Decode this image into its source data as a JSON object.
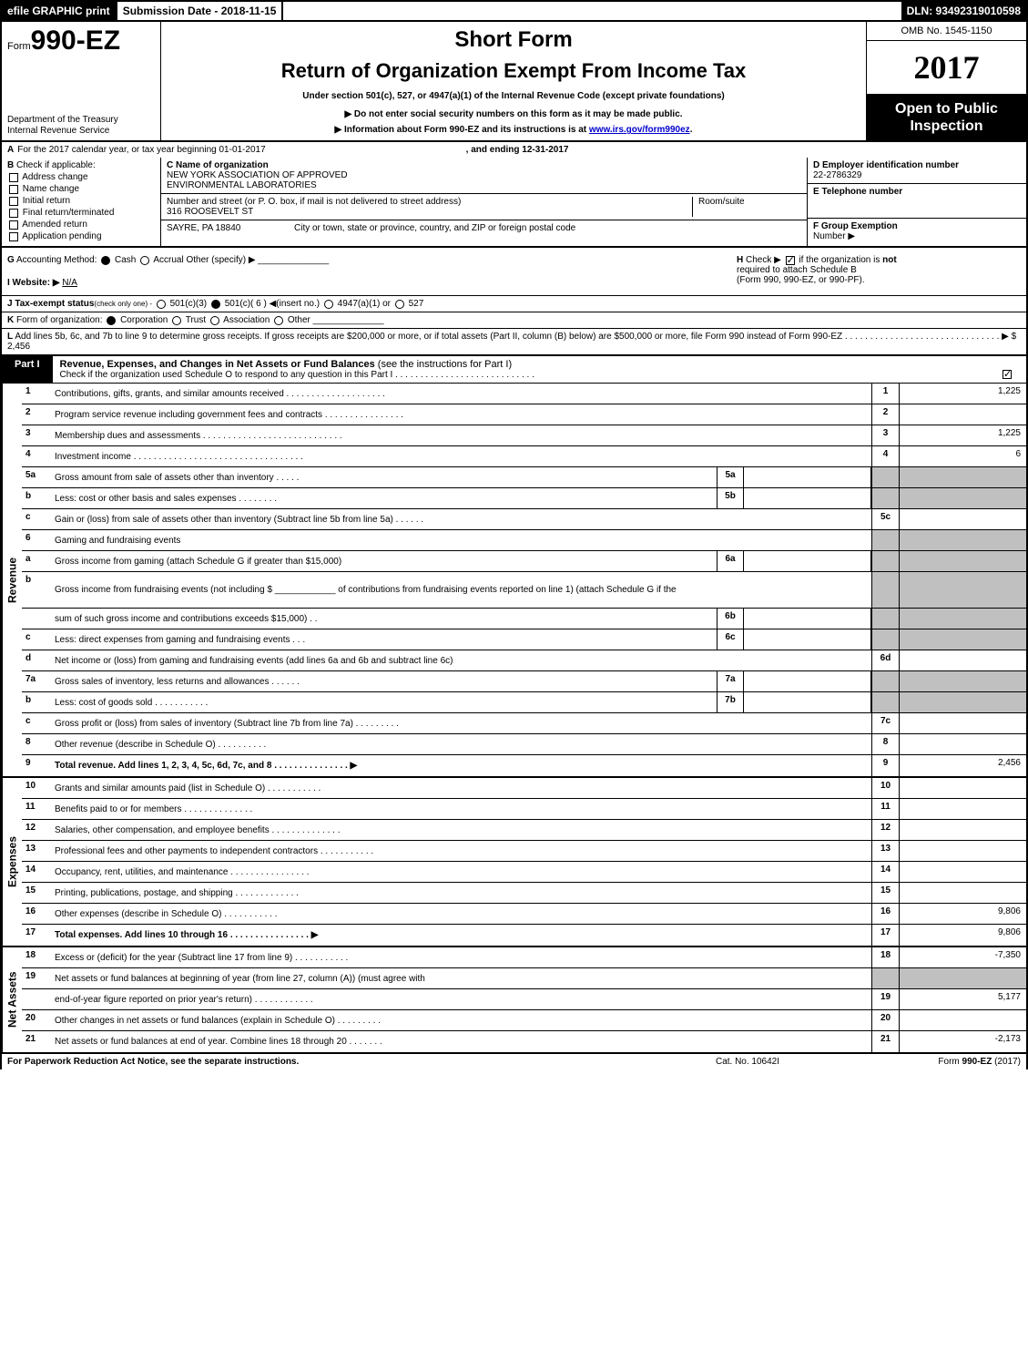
{
  "topbar": {
    "efile": "efile GRAPHIC print",
    "submission_date_label": "Submission Date - 2018-11-15",
    "dln": "DLN: 93492319010598"
  },
  "header": {
    "form_prefix": "Form",
    "form_number": "990-EZ",
    "dept_line1": "Department of the Treasury",
    "dept_line2": "Internal Revenue Service",
    "short_form": "Short Form",
    "title": "Return of Organization Exempt From Income Tax",
    "subtitle": "Under section 501(c), 527, or 4947(a)(1) of the Internal Revenue Code (except private foundations)",
    "arrow1": "▶ Do not enter social security numbers on this form as it may be made public.",
    "arrow2_prefix": "▶ Information about Form 990-EZ and its instructions is at ",
    "arrow2_link": "www.irs.gov/form990ez",
    "arrow2_suffix": ".",
    "omb": "OMB No. 1545-1150",
    "year": "2017",
    "open_public_l1": "Open to Public",
    "open_public_l2": "Inspection"
  },
  "section_a": {
    "line_a_prefix": "A",
    "line_a_text": "For the 2017 calendar year, or tax year beginning 01-01-2017",
    "line_a_mid": ", and ending 12-31-2017",
    "b_label": "B",
    "b_text": "Check if applicable:",
    "b_options": [
      "Address change",
      "Name change",
      "Initial return",
      "Final return/terminated",
      "Amended return",
      "Application pending"
    ],
    "c_label": "C Name of organization",
    "c_name_l1": "NEW YORK ASSOCIATION OF APPROVED",
    "c_name_l2": "ENVIRONMENTAL LABORATORIES",
    "c_street_label": "Number and street (or P. O. box, if mail is not delivered to street address)",
    "c_street": "316 ROOSEVELT ST",
    "c_room_label": "Room/suite",
    "c_city_label": "City or town, state or province, country, and ZIP or foreign postal code",
    "c_city": "SAYRE, PA  18840",
    "d_label": "D Employer identification number",
    "d_value": "22-2786329",
    "e_label": "E Telephone number",
    "f_label": "F Group Exemption",
    "f_label2": "Number",
    "f_arrow": "▶"
  },
  "line_g": {
    "g_label": "G",
    "g_text": "Accounting Method:",
    "g_cash": "Cash",
    "g_accrual": "Accrual",
    "g_other": "Other (specify) ▶",
    "h_label": "H",
    "h_text1": "Check ▶",
    "h_text2": "if the organization is ",
    "h_not": "not",
    "h_text3": "required to attach Schedule B",
    "h_text4": "(Form 990, 990-EZ, or 990-PF).",
    "i_label": "I Website: ▶",
    "i_value": "N/A",
    "j_label": "J Tax-exempt status",
    "j_note": "(check only one) -",
    "j_opts": [
      "501(c)(3)",
      "501(c)( 6 ) ◀(insert no.)",
      "4947(a)(1) or",
      "527"
    ],
    "k_label": "K",
    "k_text": "Form of organization:",
    "k_opts": [
      "Corporation",
      "Trust",
      "Association",
      "Other"
    ],
    "l_label": "L",
    "l_text": "Add lines 5b, 6c, and 7b to line 9 to determine gross receipts. If gross receipts are $200,000 or more, or if total assets (Part II, column (B) below) are $500,000 or more, file Form 990 instead of Form 990-EZ",
    "l_dots": " . . . . . . . . . . . . . . . . . . . . . . . . . . . . . . . ▶ $ 2,456"
  },
  "part1_header": {
    "tag": "Part I",
    "title": "Revenue, Expenses, and Changes in Net Assets or Fund Balances",
    "note": "(see the instructions for Part I)",
    "sub": "Check if the organization used Schedule O to respond to any question in this Part I . . . . . . . . . . . . . . . . . . . . . . . . . . . ."
  },
  "vlabels": {
    "revenue": "Revenue",
    "expenses": "Expenses",
    "netassets": "Net Assets"
  },
  "rows": [
    {
      "num": "1",
      "desc": "Contributions, gifts, grants, and similar amounts received . . . . . . . . . . . . . . . . . . . .",
      "rnum": "1",
      "rval": "1,225"
    },
    {
      "num": "2",
      "desc": "Program service revenue including government fees and contracts . . . . . . . . . . . . . . . .",
      "rnum": "2",
      "rval": ""
    },
    {
      "num": "3",
      "desc": "Membership dues and assessments . . . . . . . . . . . . . . . . . . . . . . . . . . . .",
      "rnum": "3",
      "rval": "1,225"
    },
    {
      "num": "4",
      "desc": "Investment income . . . . . . . . . . . . . . . . . . . . . . . . . . . . . . . . . .",
      "rnum": "4",
      "rval": "6"
    },
    {
      "num": "5a",
      "desc": "Gross amount from sale of assets other than inventory . . . . .",
      "mid_num": "5a",
      "mid_val": "",
      "shaded": true
    },
    {
      "num": "b",
      "desc": "Less: cost or other basis and sales expenses . . . . . . . .",
      "mid_num": "5b",
      "mid_val": "",
      "shaded": true
    },
    {
      "num": "c",
      "desc": "Gain or (loss) from sale of assets other than inventory (Subtract line 5b from line 5a)               .    .    .    .    .    .",
      "rnum": "5c",
      "rval": ""
    },
    {
      "num": "6",
      "desc": "Gaming and fundraising events",
      "shaded": true
    },
    {
      "num": "a",
      "desc": "Gross income from gaming (attach Schedule G if greater than $15,000)",
      "mid_num": "6a",
      "mid_val": "",
      "shaded": true
    },
    {
      "num": "b",
      "desc": "Gross income from fundraising events (not including $ ____________ of contributions from fundraising events reported on line 1) (attach Schedule G if the",
      "shaded": true,
      "tall": true
    },
    {
      "num": "",
      "desc": "sum of such gross income and contributions exceeds $15,000)         .    .",
      "mid_num": "6b",
      "mid_val": "",
      "shaded": true
    },
    {
      "num": "c",
      "desc": "Less: direct expenses from gaming and fundraising events              .    .    .",
      "mid_num": "6c",
      "mid_val": "",
      "shaded": true
    },
    {
      "num": "d",
      "desc": "Net income or (loss) from gaming and fundraising events (add lines 6a and 6b and subtract line 6c)",
      "rnum": "6d",
      "rval": ""
    },
    {
      "num": "7a",
      "desc": "Gross sales of inventory, less returns and allowances               .   .   .   .   .   .",
      "mid_num": "7a",
      "mid_val": "",
      "shaded": true
    },
    {
      "num": "b",
      "desc": "Less: cost of goods sold                              .   .   .   .   .   .   .   .   .   .   .",
      "mid_num": "7b",
      "mid_val": "",
      "shaded": true
    },
    {
      "num": "c",
      "desc": "Gross profit or (loss) from sales of inventory (Subtract line 7b from line 7a)         .   .   .   .   .   .   .   .   .",
      "rnum": "7c",
      "rval": ""
    },
    {
      "num": "8",
      "desc": "Other revenue (describe in Schedule O)                                                                     .   .   .   .   .   .   .   .   .   .",
      "rnum": "8",
      "rval": ""
    },
    {
      "num": "9",
      "desc": "Total revenue. Add lines 1, 2, 3, 4, 5c, 6d, 7c, and 8            .   .   .   .   .   .   .   .   .   .   .   .   .   .   .  ▶",
      "rnum": "9",
      "rval": "2,456",
      "bold": true
    }
  ],
  "expense_rows": [
    {
      "num": "10",
      "desc": "Grants and similar amounts paid (list in Schedule O)                       .   .   .   .   .   .   .   .   .   .   .",
      "rnum": "10",
      "rval": ""
    },
    {
      "num": "11",
      "desc": "Benefits paid to or for members                                         .   .   .   .   .   .   .   .   .   .   .   .   .   .",
      "rnum": "11",
      "rval": ""
    },
    {
      "num": "12",
      "desc": "Salaries, other compensation, and employee benefits              .   .   .   .   .   .   .   .   .   .   .   .   .   .",
      "rnum": "12",
      "rval": ""
    },
    {
      "num": "13",
      "desc": "Professional fees and other payments to independent contractors        .   .   .   .   .   .   .   .   .   .   .",
      "rnum": "13",
      "rval": ""
    },
    {
      "num": "14",
      "desc": "Occupancy, rent, utilities, and maintenance               .   .   .   .   .   .   .   .   .   .   .   .   .   .   .   .",
      "rnum": "14",
      "rval": ""
    },
    {
      "num": "15",
      "desc": "Printing, publications, postage, and shipping                            .   .   .   .   .   .   .   .   .   .   .   .   .",
      "rnum": "15",
      "rval": ""
    },
    {
      "num": "16",
      "desc": "Other expenses (describe in Schedule O)                                             .   .   .   .   .   .   .   .   .   .   .",
      "rnum": "16",
      "rval": "9,806"
    },
    {
      "num": "17",
      "desc": "Total expenses. Add lines 10 through 16                    .   .   .   .   .   .   .   .   .   .   .   .   .   .   .   .  ▶",
      "rnum": "17",
      "rval": "9,806",
      "bold": true
    }
  ],
  "netasset_rows": [
    {
      "num": "18",
      "desc": "Excess or (deficit) for the year (Subtract line 17 from line 9)                .   .   .   .   .   .   .   .   .   .   .",
      "rnum": "18",
      "rval": "-7,350"
    },
    {
      "num": "19",
      "desc": "Net assets or fund balances at beginning of year (from line 27, column (A)) (must agree with",
      "shaded": true
    },
    {
      "num": "",
      "desc": "end-of-year figure reported on prior year's return)                        .   .   .   .   .   .   .   .   .   .   .   .",
      "rnum": "19",
      "rval": "5,177"
    },
    {
      "num": "20",
      "desc": "Other changes in net assets or fund balances (explain in Schedule O)          .   .   .   .   .   .   .   .   .",
      "rnum": "20",
      "rval": ""
    },
    {
      "num": "21",
      "desc": "Net assets or fund balances at end of year. Combine lines 18 through 20            .   .   .   .   .   .   .",
      "rnum": "21",
      "rval": "-2,173"
    }
  ],
  "footer": {
    "left": "For Paperwork Reduction Act Notice, see the separate instructions.",
    "center": "Cat. No. 10642I",
    "right_prefix": "Form ",
    "right_form": "990-EZ",
    "right_suffix": " (2017)"
  }
}
